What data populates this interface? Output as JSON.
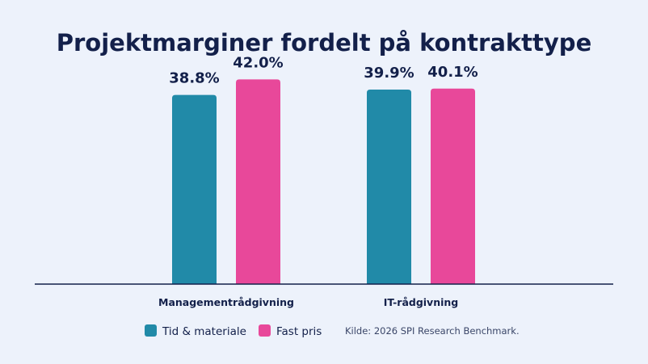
{
  "chart_data": {
    "type": "bar",
    "title": "Projektmarginer fordelt på kontrakttype",
    "categories": [
      "Managementrådgivning",
      "IT-rådgivning"
    ],
    "series": [
      {
        "name": "Tid & materiale",
        "color": "#218aa8",
        "values": [
          38.8,
          39.9
        ],
        "labels": [
          "38.8%",
          "39.9%"
        ]
      },
      {
        "name": "Fast pris",
        "color": "#e8489a",
        "values": [
          42.0,
          40.1
        ],
        "labels": [
          "42.0%",
          "40.1%"
        ]
      }
    ],
    "ylim": [
      0,
      50
    ],
    "grid": false,
    "legend_position": "bottom",
    "source": "Kilde: 2026 SPI Research Benchmark."
  }
}
